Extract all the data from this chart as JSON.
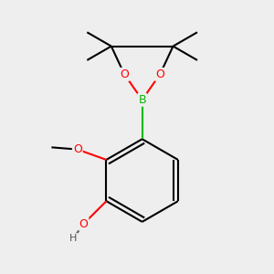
{
  "bg_color": "#eeeeee",
  "bond_color": "#000000",
  "bond_width": 1.5,
  "atom_colors": {
    "O": "#ff0000",
    "B": "#00bb00",
    "C": "#000000",
    "H": "#505050"
  },
  "xlim": [
    -1.1,
    1.1
  ],
  "ylim": [
    -1.3,
    1.3
  ]
}
